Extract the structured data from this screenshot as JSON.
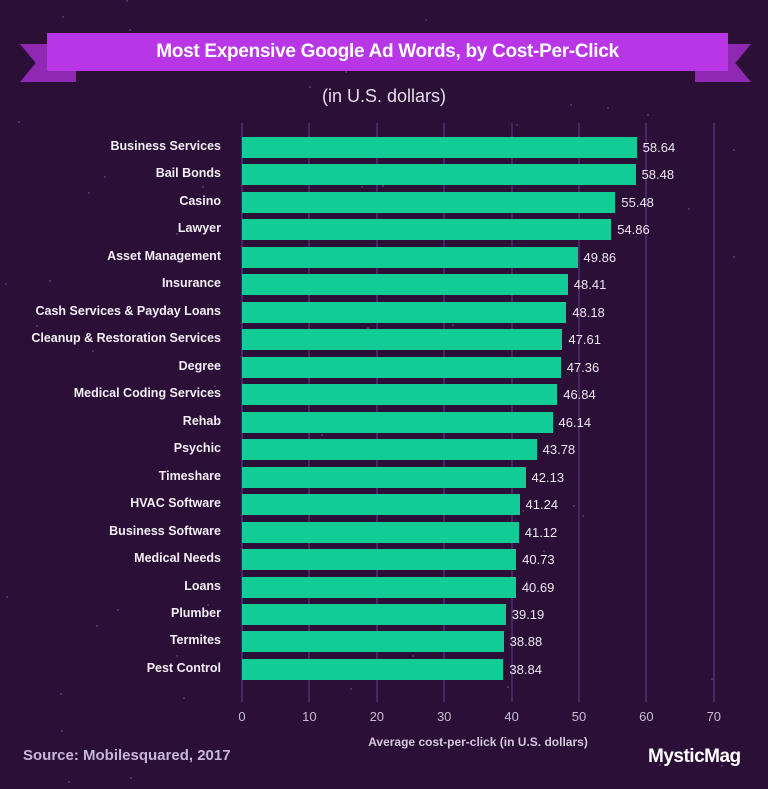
{
  "header": {
    "title": "Most Expensive Google Ad Words, by Cost-Per-Click",
    "subtitle": "(in U.S. dollars)"
  },
  "footer": {
    "source": "Source: Mobilesquared, 2017",
    "logo": "MysticMag"
  },
  "colors": {
    "background": "#2b0f37",
    "ribbon": "#b936e6",
    "ribbon_tail": "#8f28b3",
    "bar": "#12cc96",
    "gridline": "#4a2466"
  },
  "chart_data": {
    "type": "bar",
    "orientation": "horizontal",
    "title": "Most Expensive Google Ad Words, by Cost-Per-Click",
    "subtitle": "(in U.S. dollars)",
    "xlabel": "Average cost-per-click (in U.S. dollars)",
    "ylabel": "",
    "xlim": [
      0,
      70
    ],
    "xticks": [
      "0",
      "10",
      "20",
      "30",
      "40",
      "50",
      "60",
      "70"
    ],
    "grid": true,
    "legend": null,
    "categories": [
      "Business Services",
      "Bail Bonds",
      "Casino",
      "Lawyer",
      "Asset Management",
      "Insurance",
      "Cash Services & Payday Loans",
      "Cleanup & Restoration Services",
      "Degree",
      "Medical Coding Services",
      "Rehab",
      "Psychic",
      "Timeshare",
      "HVAC Software",
      "Business Software",
      "Medical Needs",
      "Loans",
      "Plumber",
      "Termites",
      "Pest Control"
    ],
    "values": [
      58.64,
      58.48,
      55.48,
      54.86,
      49.86,
      48.41,
      48.18,
      47.61,
      47.36,
      46.84,
      46.14,
      43.78,
      42.13,
      41.24,
      41.12,
      40.73,
      40.69,
      39.19,
      38.88,
      38.84
    ],
    "value_labels": [
      "58.64",
      "58.48",
      "55.48",
      "54.86",
      "49.86",
      "48.41",
      "48.18",
      "47.61",
      "47.36",
      "46.84",
      "46.14",
      "43.78",
      "42.13",
      "41.24",
      "41.12",
      "40.73",
      "40.69",
      "39.19",
      "38.88",
      "38.84"
    ],
    "source": "Source: Mobilesquared, 2017"
  }
}
